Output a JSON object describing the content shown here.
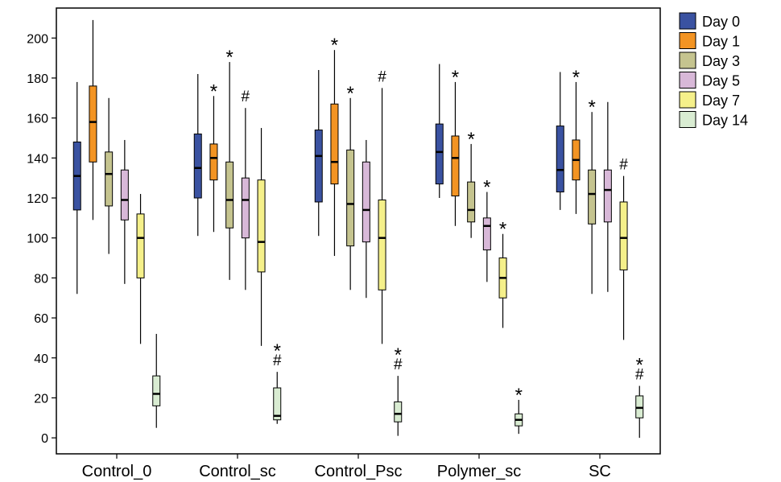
{
  "chart_data": {
    "type": "boxplot",
    "categories": [
      "Control_0",
      "Control_sc",
      "Control_Psc",
      "Polymer_sc",
      "SC"
    ],
    "ylim": [
      -8,
      215
    ],
    "yticks": [
      0,
      20,
      40,
      60,
      80,
      100,
      120,
      140,
      160,
      180,
      200
    ],
    "legend_position": "right",
    "series": [
      {
        "name": "Day 0",
        "color": "#3a52a1",
        "boxes": [
          {
            "min": 72,
            "q1": 114,
            "median": 131,
            "q3": 148,
            "max": 178,
            "annotation": ""
          },
          {
            "min": 101,
            "q1": 120,
            "median": 135,
            "q3": 152,
            "max": 182,
            "annotation": ""
          },
          {
            "min": 101,
            "q1": 118,
            "median": 141,
            "q3": 154,
            "max": 184,
            "annotation": ""
          },
          {
            "min": 120,
            "q1": 127,
            "median": 143,
            "q3": 157,
            "max": 187,
            "annotation": ""
          },
          {
            "min": 114,
            "q1": 123,
            "median": 134,
            "q3": 156,
            "max": 183,
            "annotation": ""
          }
        ]
      },
      {
        "name": "Day 1",
        "color": "#f39423",
        "boxes": [
          {
            "min": 109,
            "q1": 138,
            "median": 158,
            "q3": 176,
            "max": 209,
            "annotation": ""
          },
          {
            "min": 103,
            "q1": 129,
            "median": 140,
            "q3": 147,
            "max": 171,
            "annotation": "*"
          },
          {
            "min": 91,
            "q1": 127,
            "median": 138,
            "q3": 167,
            "max": 194,
            "annotation": "*"
          },
          {
            "min": 106,
            "q1": 121,
            "median": 140,
            "q3": 151,
            "max": 178,
            "annotation": "*"
          },
          {
            "min": 112,
            "q1": 129,
            "median": 139,
            "q3": 149,
            "max": 178,
            "annotation": "*"
          }
        ]
      },
      {
        "name": "Day 3",
        "color": "#c5c48f",
        "boxes": [
          {
            "min": 92,
            "q1": 116,
            "median": 132,
            "q3": 143,
            "max": 170,
            "annotation": ""
          },
          {
            "min": 79,
            "q1": 105,
            "median": 119,
            "q3": 138,
            "max": 188,
            "annotation": "*"
          },
          {
            "min": 74,
            "q1": 96,
            "median": 117,
            "q3": 144,
            "max": 170,
            "annotation": "*"
          },
          {
            "min": 100,
            "q1": 108,
            "median": 114,
            "q3": 128,
            "max": 147,
            "annotation": "*"
          },
          {
            "min": 72,
            "q1": 107,
            "median": 122,
            "q3": 134,
            "max": 163,
            "annotation": "*"
          }
        ]
      },
      {
        "name": "Day 5",
        "color": "#d8b8d8",
        "boxes": [
          {
            "min": 77,
            "q1": 109,
            "median": 119,
            "q3": 134,
            "max": 149,
            "annotation": ""
          },
          {
            "min": 74,
            "q1": 100,
            "median": 119,
            "q3": 130,
            "max": 165,
            "annotation": "#"
          },
          {
            "min": 70,
            "q1": 98,
            "median": 114,
            "q3": 138,
            "max": 149,
            "annotation": ""
          },
          {
            "min": 78,
            "q1": 94,
            "median": 106,
            "q3": 110,
            "max": 123,
            "annotation": "*"
          },
          {
            "min": 73,
            "q1": 108,
            "median": 124,
            "q3": 134,
            "max": 168,
            "annotation": ""
          }
        ]
      },
      {
        "name": "Day 7",
        "color": "#f5f08a",
        "boxes": [
          {
            "min": 47,
            "q1": 80,
            "median": 100,
            "q3": 112,
            "max": 122,
            "annotation": ""
          },
          {
            "min": 46,
            "q1": 83,
            "median": 98,
            "q3": 129,
            "max": 155,
            "annotation": ""
          },
          {
            "min": 47,
            "q1": 74,
            "median": 100,
            "q3": 119,
            "max": 175,
            "annotation": "#"
          },
          {
            "min": 55,
            "q1": 70,
            "median": 80,
            "q3": 90,
            "max": 102,
            "annotation": "*"
          },
          {
            "min": 49,
            "q1": 84,
            "median": 100,
            "q3": 118,
            "max": 131,
            "annotation": "#"
          }
        ]
      },
      {
        "name": "Day 14",
        "color": "#d9ecd2",
        "boxes": [
          {
            "min": 5,
            "q1": 16,
            "median": 22,
            "q3": 31,
            "max": 52,
            "annotation": ""
          },
          {
            "min": 7,
            "q1": 9,
            "median": 11,
            "q3": 25,
            "max": 33,
            "annotation": "*\n#"
          },
          {
            "min": 1,
            "q1": 8,
            "median": 12,
            "q3": 18,
            "max": 31,
            "annotation": "*\n#"
          },
          {
            "min": 2,
            "q1": 6,
            "median": 9,
            "q3": 12,
            "max": 19,
            "annotation": "*"
          },
          {
            "min": 0,
            "q1": 10,
            "median": 15,
            "q3": 21,
            "max": 26,
            "annotation": "*\n#"
          }
        ]
      }
    ]
  }
}
